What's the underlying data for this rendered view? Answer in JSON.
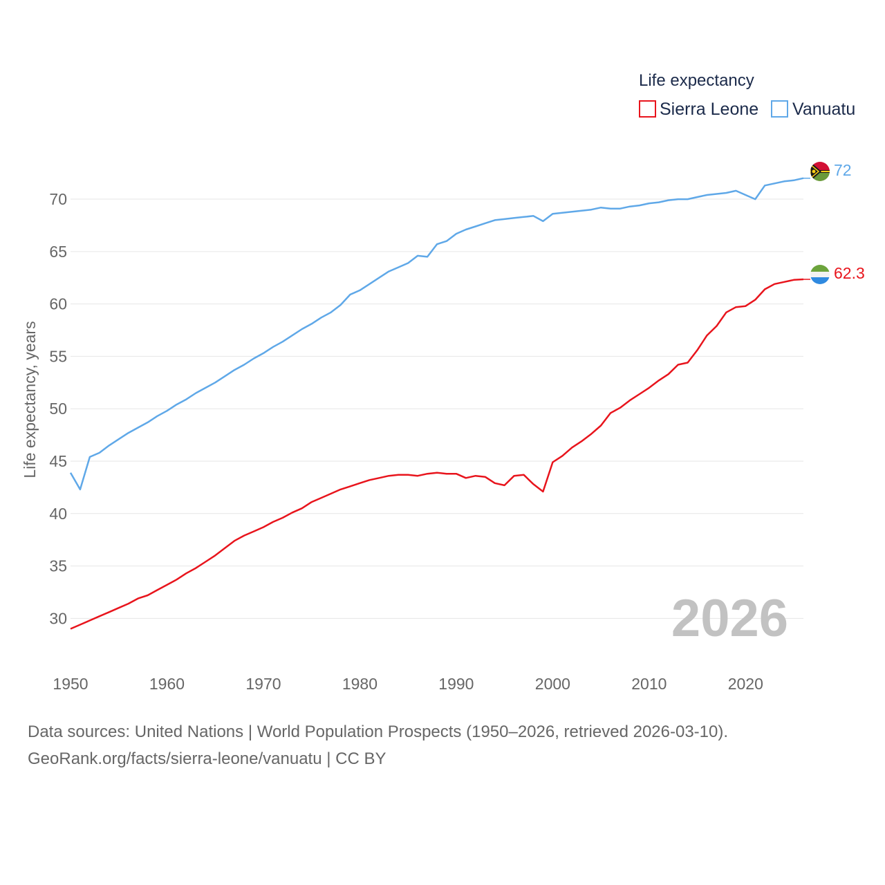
{
  "chart_data": {
    "type": "line",
    "legend_title": "Life expectancy",
    "ylabel": "Life expectancy, years",
    "xlabel": "",
    "xlim": [
      1950,
      2026
    ],
    "ylim": [
      26,
      73.5
    ],
    "x_ticks": [
      1950,
      1960,
      1970,
      1980,
      1990,
      2000,
      2010,
      2020
    ],
    "y_ticks": [
      30,
      35,
      40,
      45,
      50,
      55,
      60,
      65,
      70
    ],
    "current_year": "2026",
    "x": [
      1950,
      1951,
      1952,
      1953,
      1954,
      1955,
      1956,
      1957,
      1958,
      1959,
      1960,
      1961,
      1962,
      1963,
      1964,
      1965,
      1966,
      1967,
      1968,
      1969,
      1970,
      1971,
      1972,
      1973,
      1974,
      1975,
      1976,
      1977,
      1978,
      1979,
      1980,
      1981,
      1982,
      1983,
      1984,
      1985,
      1986,
      1987,
      1988,
      1989,
      1990,
      1991,
      1992,
      1993,
      1994,
      1995,
      1996,
      1997,
      1998,
      1999,
      2000,
      2001,
      2002,
      2003,
      2004,
      2005,
      2006,
      2007,
      2008,
      2009,
      2010,
      2011,
      2012,
      2013,
      2014,
      2015,
      2016,
      2017,
      2018,
      2019,
      2020,
      2021,
      2022,
      2023,
      2024,
      2025,
      2026
    ],
    "series": [
      {
        "name": "Sierra Leone",
        "color": "#e8141c",
        "end_label": "62.3",
        "values": [
          29.0,
          29.4,
          29.8,
          30.2,
          30.6,
          31.0,
          31.4,
          31.9,
          32.2,
          32.7,
          33.2,
          33.7,
          34.3,
          34.8,
          35.4,
          36.0,
          36.7,
          37.4,
          37.9,
          38.3,
          38.7,
          39.2,
          39.6,
          40.1,
          40.5,
          41.1,
          41.5,
          41.9,
          42.3,
          42.6,
          42.9,
          43.2,
          43.4,
          43.6,
          43.7,
          43.7,
          43.6,
          43.8,
          43.9,
          43.8,
          43.8,
          43.4,
          43.6,
          43.5,
          42.9,
          42.7,
          43.6,
          43.7,
          42.8,
          42.1,
          44.9,
          45.5,
          46.3,
          46.9,
          47.6,
          48.4,
          49.6,
          50.1,
          50.8,
          51.4,
          52.0,
          52.7,
          53.3,
          54.2,
          54.4,
          55.6,
          57.0,
          57.9,
          59.2,
          59.7,
          59.8,
          60.4,
          61.4,
          61.9,
          62.1,
          62.3,
          62.35
        ]
      },
      {
        "name": "Vanuatu",
        "color": "#5fa8e8",
        "end_label": "72",
        "values": [
          43.9,
          42.3,
          45.4,
          45.8,
          46.5,
          47.1,
          47.7,
          48.2,
          48.7,
          49.3,
          49.8,
          50.4,
          50.9,
          51.5,
          52.0,
          52.5,
          53.1,
          53.7,
          54.2,
          54.8,
          55.3,
          55.9,
          56.4,
          57.0,
          57.6,
          58.1,
          58.7,
          59.2,
          59.9,
          60.9,
          61.3,
          61.9,
          62.5,
          63.1,
          63.5,
          63.9,
          64.6,
          64.5,
          65.7,
          66.0,
          66.7,
          67.1,
          67.4,
          67.7,
          68.0,
          68.1,
          68.2,
          68.3,
          68.4,
          67.9,
          68.6,
          68.7,
          68.8,
          68.9,
          69.0,
          69.2,
          69.1,
          69.1,
          69.3,
          69.4,
          69.6,
          69.7,
          69.9,
          70.0,
          70.0,
          70.2,
          70.4,
          70.5,
          70.6,
          70.8,
          70.4,
          70.0,
          71.3,
          71.5,
          71.7,
          71.8,
          72.0
        ]
      }
    ]
  },
  "footer": {
    "line1": "Data sources: United Nations | World Population Prospects (1950–2026, retrieved 2026-03-10).",
    "line2": "GeoRank.org/facts/sierra-leone/vanuatu | CC BY"
  }
}
